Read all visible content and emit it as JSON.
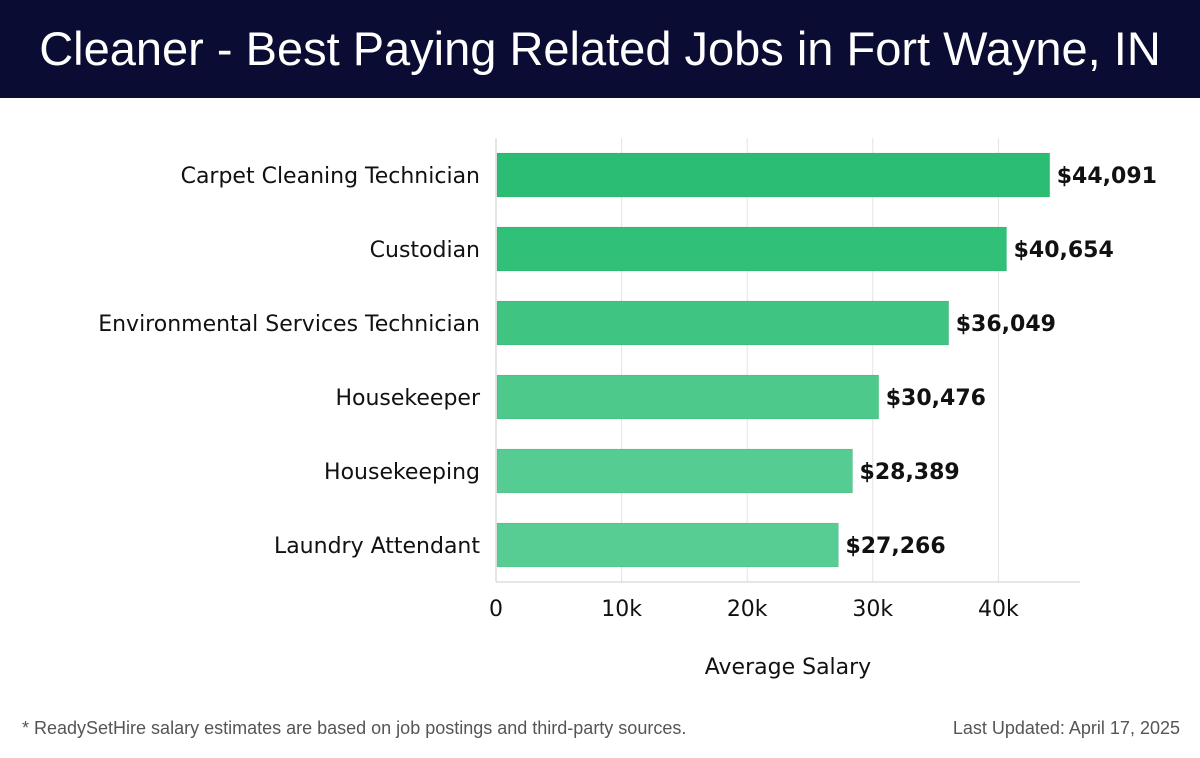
{
  "header": {
    "title": "Cleaner - Best Paying Related Jobs in Fort Wayne, IN"
  },
  "chart_data": {
    "type": "bar",
    "orientation": "horizontal",
    "categories": [
      "Carpet Cleaning Technician",
      "Custodian",
      "Environmental Services Technician",
      "Housekeeper",
      "Housekeeping",
      "Laundry Attendant"
    ],
    "values": [
      44091,
      40654,
      36049,
      30476,
      28389,
      27266
    ],
    "value_labels": [
      "$44,091",
      "$40,654",
      "$36,049",
      "$30,476",
      "$28,389",
      "$27,266"
    ],
    "bar_colors": [
      "#2bbd74",
      "#30c078",
      "#3fc482",
      "#4cc98b",
      "#55cc91",
      "#57cd93"
    ],
    "xlabel": "Average Salary",
    "ylabel": "",
    "xlim": [
      0,
      46500
    ],
    "x_ticks": [
      0,
      10000,
      20000,
      30000,
      40000
    ],
    "x_tick_labels": [
      "0",
      "10k",
      "20k",
      "30k",
      "40k"
    ],
    "grid": "vertical"
  },
  "footer": {
    "note": "* ReadySetHire salary estimates are based on job postings and third-party sources.",
    "updated": "Last Updated: April 17, 2025"
  }
}
